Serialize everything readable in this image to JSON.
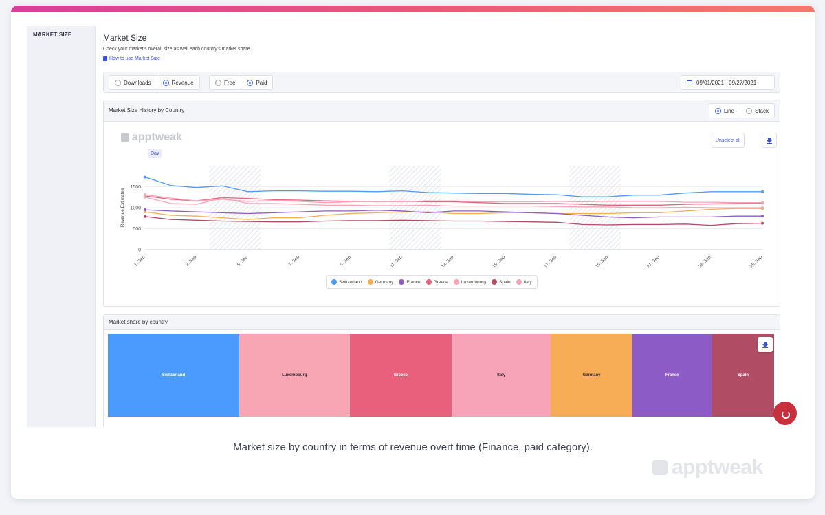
{
  "sidebar": {
    "section_label": "MARKET SIZE"
  },
  "header": {
    "title": "Market Size",
    "description": "Check your market's overall size as well each country's market share.",
    "howto_link": "How to use Market Size"
  },
  "filters": {
    "metric_options": [
      {
        "label": "Downloads",
        "selected": false
      },
      {
        "label": "Revenue",
        "selected": true
      }
    ],
    "price_options": [
      {
        "label": "Free",
        "selected": false
      },
      {
        "label": "Paid",
        "selected": true
      }
    ],
    "date_range": "09/01/2021 - 09/27/2021"
  },
  "history_panel": {
    "title": "Market Size History by Country",
    "view_options": [
      {
        "label": "Line",
        "selected": true
      },
      {
        "label": "Stack",
        "selected": false
      }
    ],
    "watermark": "apptweak",
    "granularity": "Day",
    "unselect_label": "Unselect all"
  },
  "share_panel": {
    "title": "Market share by country"
  },
  "colors": {
    "Switzerland": "#4b9bff",
    "Germany": "#f6ad55",
    "France": "#8c5bc6",
    "Greece": "#e8607c",
    "Luxembourg": "#f8a5b4",
    "Spain": "#b04c63",
    "Italy": "#f7a3b8"
  },
  "chart_data": [
    {
      "type": "line",
      "ylabel": "Revenue Estimates",
      "ylim": [
        0,
        2000
      ],
      "y_ticks": [
        "0",
        "500",
        "1000",
        "1500"
      ],
      "x": [
        "1. Sep",
        "2. Sep",
        "3. Sep",
        "4. Sep",
        "5. Sep",
        "6. Sep",
        "7. Sep",
        "8. Sep",
        "9. Sep",
        "10. Sep",
        "11. Sep",
        "12. Sep",
        "13. Sep",
        "14. Sep",
        "15. Sep",
        "16. Sep",
        "17. Sep",
        "18. Sep",
        "19. Sep",
        "20. Sep",
        "21. Sep",
        "22. Sep",
        "23. Sep",
        "24. Sep",
        "25. Sep"
      ],
      "x_tick_labels": [
        "1. Sep",
        "3. Sep",
        "5. Sep",
        "7. Sep",
        "9. Sep",
        "11. Sep",
        "13. Sep",
        "15. Sep",
        "17. Sep",
        "19. Sep",
        "21. Sep",
        "23. Sep",
        "25. Sep"
      ],
      "weekend_bands": [
        [
          "4. Sep",
          "5. Sep"
        ],
        [
          "11. Sep",
          "12. Sep"
        ],
        [
          "18. Sep",
          "19. Sep"
        ]
      ],
      "series": [
        {
          "name": "Switzerland",
          "values": [
            1730,
            1530,
            1480,
            1520,
            1380,
            1400,
            1400,
            1390,
            1390,
            1380,
            1400,
            1360,
            1350,
            1340,
            1340,
            1320,
            1310,
            1260,
            1260,
            1300,
            1300,
            1350,
            1380,
            1380,
            1380
          ]
        },
        {
          "name": "Germany",
          "values": [
            900,
            820,
            800,
            760,
            720,
            760,
            760,
            820,
            860,
            880,
            900,
            900,
            860,
            860,
            880,
            880,
            860,
            860,
            860,
            880,
            880,
            920,
            960,
            980,
            980
          ]
        },
        {
          "name": "France",
          "values": [
            950,
            920,
            900,
            880,
            860,
            880,
            900,
            920,
            920,
            940,
            920,
            880,
            920,
            920,
            900,
            880,
            860,
            820,
            780,
            760,
            780,
            780,
            780,
            800,
            800
          ]
        },
        {
          "name": "Greece",
          "values": [
            1280,
            1200,
            1160,
            1240,
            1220,
            1190,
            1180,
            1160,
            1150,
            1140,
            1150,
            1140,
            1140,
            1120,
            1100,
            1100,
            1100,
            1080,
            1060,
            1060,
            1060,
            1080,
            1090,
            1100,
            1110
          ]
        },
        {
          "name": "Luxembourg",
          "values": [
            1250,
            1100,
            1080,
            1230,
            1100,
            1100,
            1080,
            1060,
            1060,
            1050,
            1050,
            1060,
            1040,
            1040,
            1040,
            1040,
            1030,
            1020,
            1020,
            1000,
            1000,
            1010,
            1000,
            1000,
            1000
          ]
        },
        {
          "name": "Spain",
          "values": [
            790,
            720,
            700,
            680,
            670,
            660,
            660,
            680,
            690,
            690,
            700,
            690,
            680,
            680,
            670,
            660,
            650,
            600,
            590,
            600,
            600,
            610,
            580,
            620,
            630
          ]
        },
        {
          "name": "Italy",
          "values": [
            1310,
            1230,
            1160,
            1200,
            1150,
            1170,
            1150,
            1120,
            1140,
            1140,
            1140,
            1160,
            1160,
            1140,
            1140,
            1140,
            1150,
            1140,
            1150,
            1150,
            1150,
            1130,
            1130,
            1120,
            1120
          ]
        }
      ]
    },
    {
      "type": "treemap",
      "categories": [
        "Switzerland",
        "Luxembourg",
        "Greece",
        "Italy",
        "Germany",
        "France",
        "Spain"
      ],
      "values": [
        19.7,
        16.6,
        15.3,
        14.9,
        12.2,
        12.0,
        9.3
      ]
    }
  ],
  "caption": "Market size by country in terms of revenue overt time (Finance, paid category).",
  "brand_watermark": "apptweak"
}
